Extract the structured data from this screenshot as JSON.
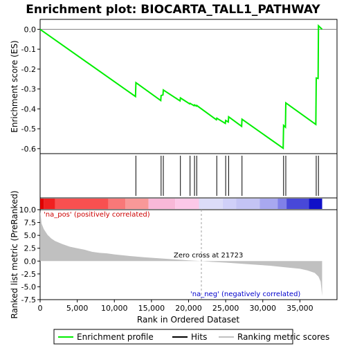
{
  "chart_data": {
    "type": "line",
    "title": "Enrichment plot: BIOCARTA_TALL1_PATHWAY",
    "xlabel": "Rank in Ordered Dataset",
    "ylabel_top": "Enrichment score (ES)",
    "ylabel_bottom": "Ranked list metric (PreRanked)",
    "xlim": [
      0,
      40000
    ],
    "es_ylim": [
      -0.625,
      0.05
    ],
    "metric_ylim": [
      -7.5,
      10
    ],
    "x_ticks": [
      0,
      5000,
      10000,
      15000,
      20000,
      25000,
      30000,
      35000
    ],
    "x_tick_labels": [
      "0",
      "5,000",
      "10,000",
      "15,000",
      "20,000",
      "25,000",
      "30,000",
      "35,000"
    ],
    "es_ticks": [
      0.0,
      -0.1,
      -0.2,
      -0.3,
      -0.4,
      -0.5,
      -0.6
    ],
    "es_tick_labels": [
      "0.0",
      "-0.1",
      "-0.2",
      "-0.3",
      "-0.4",
      "-0.5",
      "-0.6"
    ],
    "metric_ticks": [
      10.0,
      7.5,
      5.0,
      2.5,
      0.0,
      -2.5,
      -5.0,
      -7.5
    ],
    "metric_tick_labels": [
      "10.0",
      "7.5",
      "5.0",
      "2.5",
      "0.0",
      "-2.5",
      "-5.0",
      "-7.5"
    ],
    "n_genes": 38000,
    "zero_cross": 21723,
    "zero_cross_label": "Zero cross at 21723",
    "pos_label": "'na_pos' (positively correlated)",
    "neg_label": "'na_neg' (negatively correlated)",
    "hits": [
      12900,
      16300,
      16600,
      18900,
      20200,
      20800,
      21100,
      23800,
      25000,
      25400,
      27200,
      32800,
      33100,
      37200,
      37500
    ],
    "es_profile": {
      "x": [
        0,
        12850,
        12900,
        16250,
        16300,
        16550,
        16600,
        18850,
        18900,
        20150,
        20200,
        20750,
        20800,
        21050,
        21100,
        23750,
        23800,
        24950,
        25000,
        25350,
        25400,
        27150,
        27200,
        32750,
        32800,
        33050,
        33100,
        37150,
        37200,
        37450,
        37500,
        38000
      ],
      "y": [
        0.0,
        -0.338,
        -0.268,
        -0.358,
        -0.333,
        -0.33,
        -0.305,
        -0.36,
        -0.345,
        -0.375,
        -0.372,
        -0.384,
        -0.38,
        -0.386,
        -0.383,
        -0.455,
        -0.447,
        -0.473,
        -0.458,
        -0.466,
        -0.44,
        -0.488,
        -0.452,
        -0.598,
        -0.483,
        -0.492,
        -0.37,
        -0.478,
        -0.245,
        -0.247,
        0.018,
        0.0
      ]
    },
    "metric_curve": {
      "x": [
        0,
        200,
        500,
        1000,
        1500,
        2000,
        3000,
        4000,
        5000,
        6000,
        7000,
        8000,
        9000,
        10000,
        12000,
        14000,
        16000,
        18000,
        20000,
        21723,
        23000,
        25000,
        27000,
        29000,
        31000,
        33000,
        35000,
        36000,
        37000,
        37500,
        37800,
        38000
      ],
      "y": [
        9.8,
        7.3,
        6.2,
        5.1,
        4.4,
        3.9,
        3.3,
        2.8,
        2.5,
        2.2,
        1.8,
        1.6,
        1.5,
        1.3,
        1.0,
        0.75,
        0.55,
        0.35,
        0.15,
        0.0,
        -0.15,
        -0.3,
        -0.5,
        -0.7,
        -0.9,
        -1.2,
        -1.5,
        -1.8,
        -2.3,
        -3.0,
        -4.0,
        -6.8
      ]
    },
    "color_bar": [
      {
        "from": 0,
        "to": 500,
        "color": "#e00000"
      },
      {
        "from": 500,
        "to": 2000,
        "color": "#f02020"
      },
      {
        "from": 2000,
        "to": 9200,
        "color": "#f85050"
      },
      {
        "from": 9200,
        "to": 11500,
        "color": "#f87878"
      },
      {
        "from": 11500,
        "to": 14600,
        "color": "#f89898"
      },
      {
        "from": 14600,
        "to": 18200,
        "color": "#f8b8d8"
      },
      {
        "from": 18200,
        "to": 21400,
        "color": "#fcc8e8"
      },
      {
        "from": 21400,
        "to": 24600,
        "color": "#dcdcf8"
      },
      {
        "from": 24600,
        "to": 26400,
        "color": "#d0d0f8"
      },
      {
        "from": 26400,
        "to": 29600,
        "color": "#c4c4f4"
      },
      {
        "from": 29600,
        "to": 32000,
        "color": "#a8a8f0"
      },
      {
        "from": 32000,
        "to": 33200,
        "color": "#8080e8"
      },
      {
        "from": 33200,
        "to": 36200,
        "color": "#4848d8"
      },
      {
        "from": 36200,
        "to": 38000,
        "color": "#1010c8"
      }
    ],
    "colors": {
      "es_line": "#00ee00",
      "hit": "#000000",
      "metric_fill": "#c0c0c0",
      "pos_text": "#cc0000",
      "neg_text": "#0000cc",
      "zero_line": "#a0a0a0"
    },
    "legend": [
      {
        "label": "Enrichment profile",
        "type": "line",
        "color": "#00ee00"
      },
      {
        "label": "Hits",
        "type": "line",
        "color": "#000000"
      },
      {
        "label": "Ranking metric scores",
        "type": "line",
        "color": "#c0c0c0"
      }
    ]
  }
}
